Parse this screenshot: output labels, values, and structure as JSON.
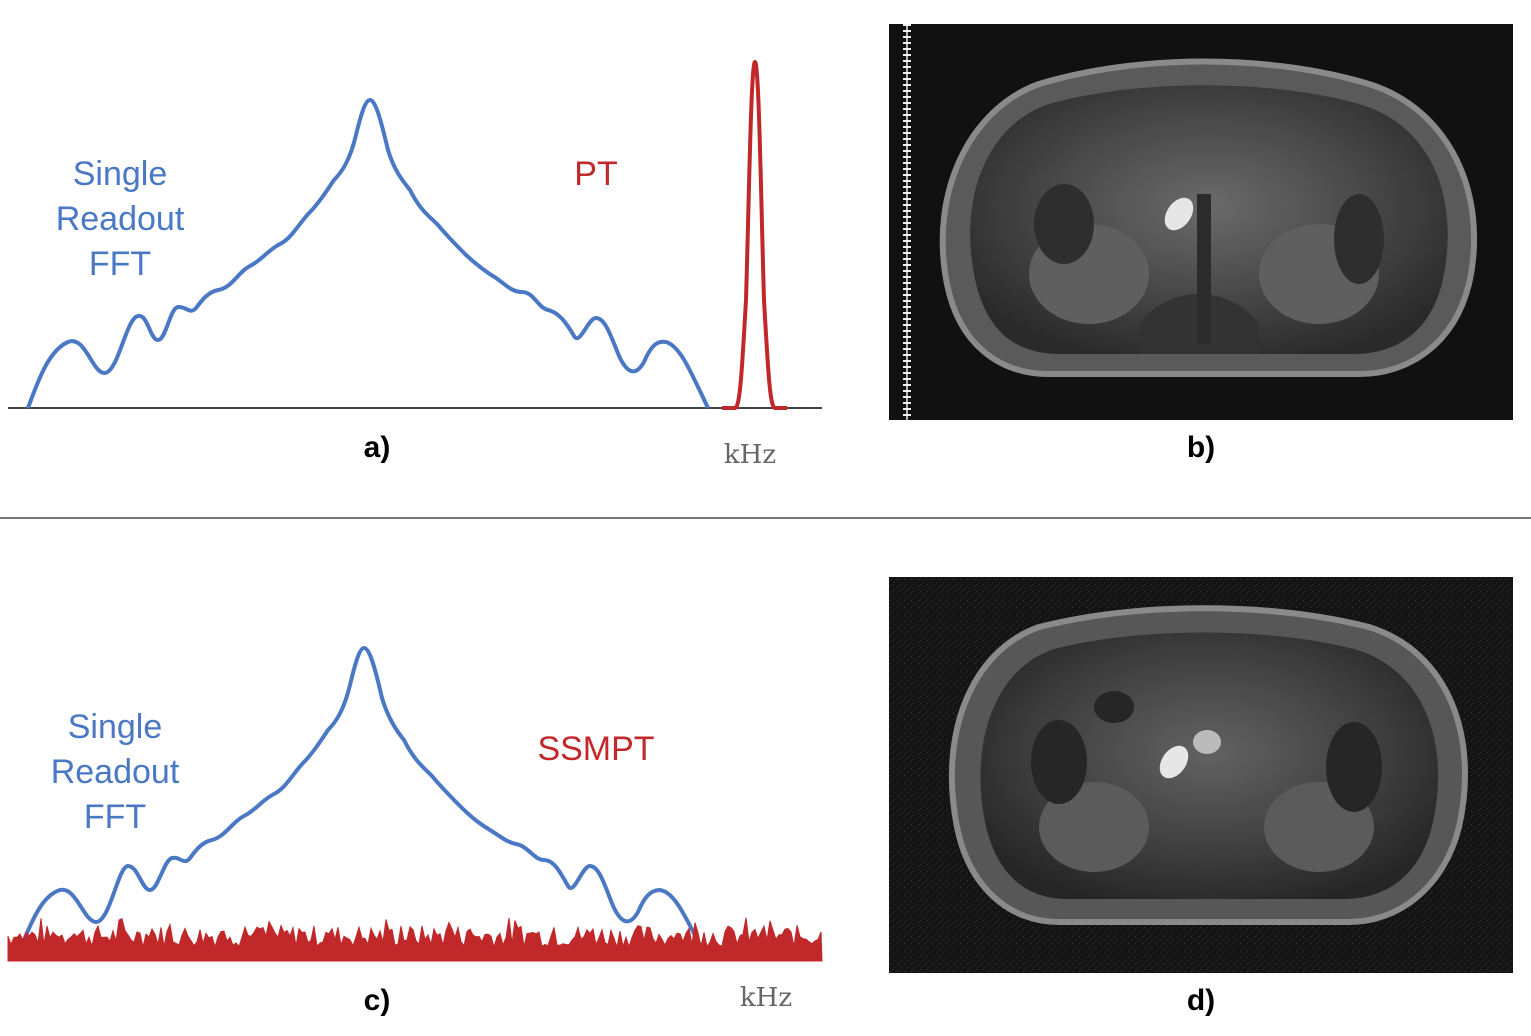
{
  "colors": {
    "fft": "#4a78c4",
    "pt": "#c0282a",
    "axis": "#444444",
    "divider": "#777777",
    "mri_background": "#111111"
  },
  "top": {
    "fft_label": [
      "Single",
      "Readout",
      "FFT"
    ],
    "signal_label": "PT",
    "unit": "kHz",
    "panel_left": "a)",
    "panel_right": "b)"
  },
  "bottom": {
    "fft_label": [
      "Single",
      "Readout",
      "FFT"
    ],
    "signal_label": "SSMPT",
    "unit": "kHz",
    "panel_left": "c)",
    "panel_right": "d)"
  }
}
